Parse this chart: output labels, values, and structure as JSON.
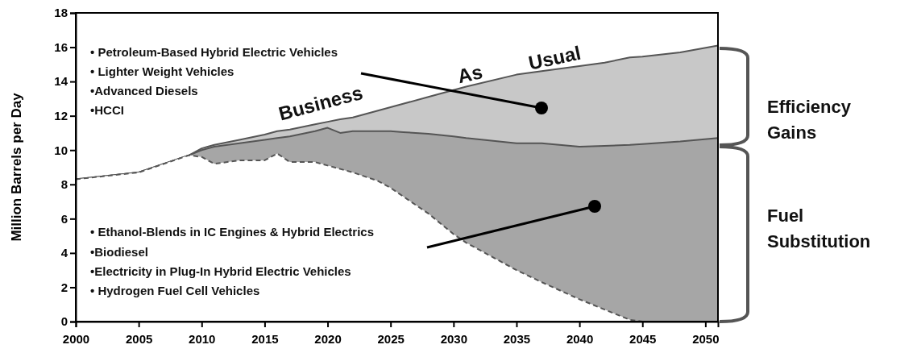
{
  "chart_data": {
    "type": "area",
    "ylabel": "Million Barrels per Day",
    "x": [
      2000,
      2005,
      2009,
      2010,
      2011,
      2013,
      2015,
      2016,
      2017,
      2019,
      2020,
      2021,
      2022,
      2024,
      2025,
      2026,
      2028,
      2030,
      2031,
      2035,
      2037,
      2040,
      2042,
      2044,
      2045,
      2048,
      2051
    ],
    "series": [
      {
        "color": "#c8c8c8",
        "values": [
          8.3,
          8.7,
          9.7,
          10.1,
          10.3,
          10.6,
          10.9,
          11.1,
          11.2,
          11.5,
          11.65,
          11.8,
          11.9,
          12.3,
          12.5,
          12.7,
          13.1,
          13.5,
          13.7,
          14.4,
          14.6,
          14.9,
          15.1,
          15.4,
          15.45,
          15.7,
          16.1
        ]
      },
      {
        "color": "#a6a6a6",
        "values": [
          8.3,
          8.7,
          9.7,
          10.0,
          10.2,
          10.4,
          10.6,
          10.7,
          10.8,
          11.1,
          11.3,
          11.0,
          11.1,
          11.1,
          11.1,
          11.05,
          10.95,
          10.8,
          10.7,
          10.4,
          10.4,
          10.2,
          10.25,
          10.3,
          10.35,
          10.5,
          10.7
        ]
      },
      {
        "color": "#ffffff",
        "line_style": "dashed",
        "values": [
          8.3,
          8.7,
          9.7,
          9.6,
          9.2,
          9.4,
          9.4,
          9.8,
          9.3,
          9.3,
          9.1,
          8.9,
          8.7,
          8.2,
          7.8,
          7.3,
          6.3,
          5.1,
          4.6,
          3.0,
          2.3,
          1.3,
          0.7,
          0.1,
          0,
          0,
          0
        ]
      }
    ],
    "xlim": [
      2000,
      2051
    ],
    "xticks": [
      2000,
      2005,
      2010,
      2015,
      2020,
      2025,
      2030,
      2035,
      2040,
      2045,
      2050
    ],
    "ylim": [
      0,
      18
    ],
    "yticks": [
      0,
      2,
      4,
      6,
      8,
      10,
      12,
      14,
      16,
      18
    ],
    "annotations": [
      "• Petroleum-Based Hybrid Electric Vehicles",
      "• Lighter Weight Vehicles",
      "•Advanced Diesels",
      "•HCCI",
      "• Ethanol-Blends in IC Engines & Hybrid Electrics",
      "•Biodiesel",
      "•Electricity in Plug-In Hybrid Electric Vehicles",
      "• Hydrogen Fuel Cell Vehicles",
      "Business",
      "As",
      "Usual",
      "Efficiency Gains",
      "Fuel Substitution"
    ]
  }
}
